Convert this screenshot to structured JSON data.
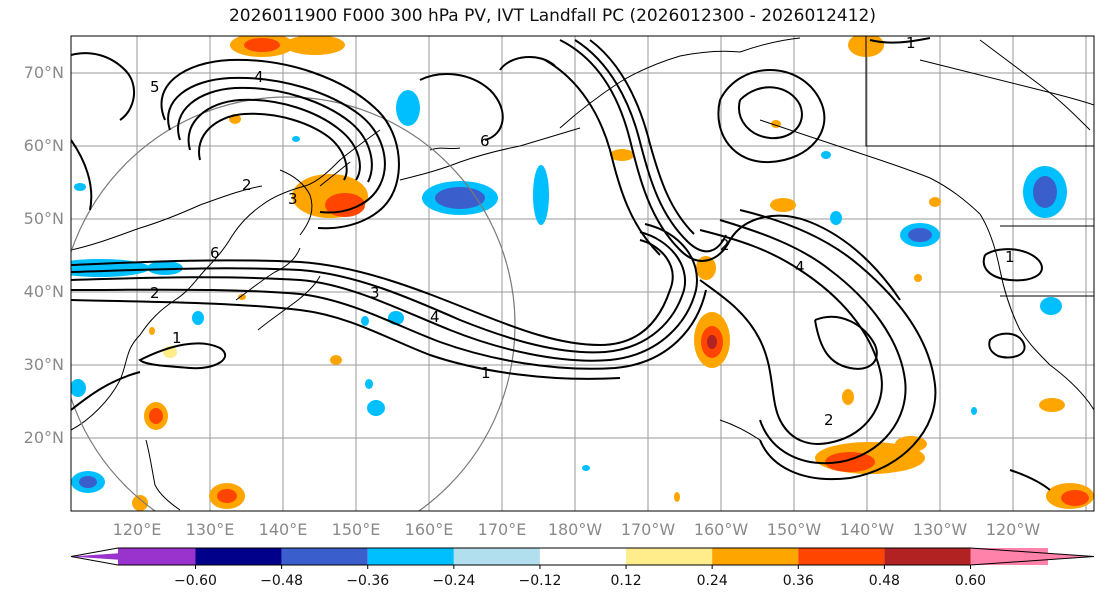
{
  "title": "2026011900 F000 300 hPa PV, IVT Landfall PC (2026012300 - 2026012412)",
  "axes": {
    "lat_labels": [
      "20°N",
      "30°N",
      "40°N",
      "50°N",
      "60°N",
      "70°N"
    ],
    "lon_labels": [
      "120°E",
      "130°E",
      "140°E",
      "150°E",
      "160°E",
      "170°E",
      "180°W",
      "170°W",
      "160°W",
      "150°W",
      "140°W",
      "130°W",
      "120°W"
    ]
  },
  "colorbar": {
    "ticks": [
      "−0.60",
      "−0.48",
      "−0.36",
      "−0.24",
      "−0.12",
      "0.12",
      "0.24",
      "0.36",
      "0.48",
      "0.60"
    ],
    "colors": [
      "#9a32cd",
      "#00008b",
      "#3a5fcd",
      "#00bfff",
      "#b2dfee",
      "#ffffff",
      "#ffec8b",
      "#ffa500",
      "#ff4500",
      "#b22222",
      "#ff82ab"
    ]
  },
  "contour_labels": [
    "1",
    "2",
    "3",
    "4",
    "5",
    "6",
    "1",
    "2",
    "3",
    "4",
    "1",
    "2",
    "6",
    "4",
    "1",
    "2"
  ]
}
